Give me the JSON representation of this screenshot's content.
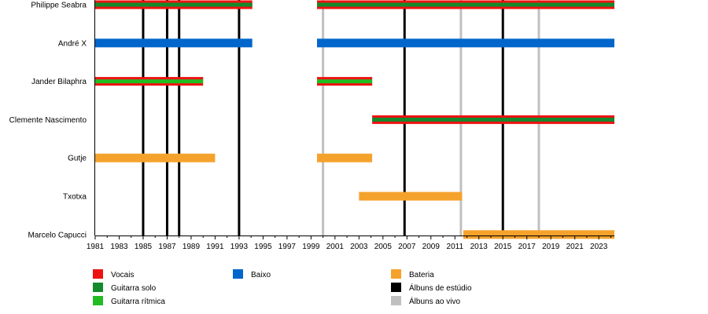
{
  "chart_data": {
    "type": "timeline",
    "x_min": 1981,
    "x_max": 2024.3,
    "ticks": [
      1981,
      1983,
      1985,
      1987,
      1989,
      1991,
      1993,
      1995,
      1997,
      1999,
      2001,
      2003,
      2005,
      2007,
      2009,
      2011,
      2013,
      2015,
      2017,
      2019,
      2021,
      2023
    ],
    "roles": {
      "vocals": {
        "label": "Vocais",
        "color": "#ee1111"
      },
      "lead_guitar": {
        "label": "Guitarra solo",
        "color": "#138a2c"
      },
      "rhythm_guitar": {
        "label": "Guitarra rítmica",
        "color": "#22bb22"
      },
      "bass": {
        "label": "Baixo",
        "color": "#0066cc"
      },
      "drums": {
        "label": "Bateria",
        "color": "#f5a22d"
      },
      "studio_albums": {
        "label": "Álbuns de estúdio",
        "color": "#000000"
      },
      "live_albums": {
        "label": "Álbuns ao vivo",
        "color": "#c0c0c0"
      }
    },
    "members": [
      {
        "name": "Philippe Seabra",
        "periods": [
          {
            "start": 1981,
            "end": 1994.1,
            "roles": [
              "vocals",
              "lead_guitar"
            ]
          },
          {
            "start": 1999.5,
            "end": 2024.3,
            "roles": [
              "vocals",
              "lead_guitar"
            ]
          }
        ]
      },
      {
        "name": "André X",
        "periods": [
          {
            "start": 1981,
            "end": 1994.1,
            "roles": [
              "bass"
            ]
          },
          {
            "start": 1999.5,
            "end": 2024.3,
            "roles": [
              "bass"
            ]
          }
        ]
      },
      {
        "name": "Jander Bilaphra",
        "periods": [
          {
            "start": 1981,
            "end": 1990.0,
            "roles": [
              "vocals",
              "rhythm_guitar"
            ]
          },
          {
            "start": 1999.5,
            "end": 2004.1,
            "roles": [
              "vocals",
              "rhythm_guitar"
            ]
          }
        ]
      },
      {
        "name": "Clemente Nascimento",
        "periods": [
          {
            "start": 2004.1,
            "end": 2024.3,
            "roles": [
              "vocals",
              "lead_guitar"
            ]
          }
        ]
      },
      {
        "name": "Gutje",
        "periods": [
          {
            "start": 1981,
            "end": 1991.0,
            "roles": [
              "drums"
            ]
          },
          {
            "start": 1999.5,
            "end": 2004.1,
            "roles": [
              "drums"
            ]
          }
        ]
      },
      {
        "name": "Txotxa",
        "periods": [
          {
            "start": 2003.0,
            "end": 2011.6,
            "roles": [
              "drums"
            ]
          }
        ]
      },
      {
        "name": "Marcelo Capucci",
        "periods": [
          {
            "start": 2011.7,
            "end": 2024.3,
            "roles": [
              "drums"
            ]
          }
        ]
      }
    ],
    "studio_album_years": [
      1985,
      1987,
      1988,
      1993,
      2006.8,
      2015
    ],
    "live_album_years": [
      2000,
      2011.5,
      2018
    ]
  },
  "legend": [
    {
      "role": "vocals",
      "label": "Vocais",
      "color": "#ee1111"
    },
    {
      "role": "lead_guitar",
      "label": "Guitarra solo",
      "color": "#138a2c"
    },
    {
      "role": "rhythm_guitar",
      "label": "Guitarra rítmica",
      "color": "#22bb22"
    },
    {
      "role": "bass",
      "label": "Baixo",
      "color": "#0066cc"
    },
    {
      "role": "drums",
      "label": "Bateria",
      "color": "#f5a22d"
    },
    {
      "role": "studio_albums",
      "label": "Álbuns de estúdio",
      "color": "#000000"
    },
    {
      "role": "live_albums",
      "label": "Álbuns ao vivo",
      "color": "#c0c0c0"
    }
  ]
}
